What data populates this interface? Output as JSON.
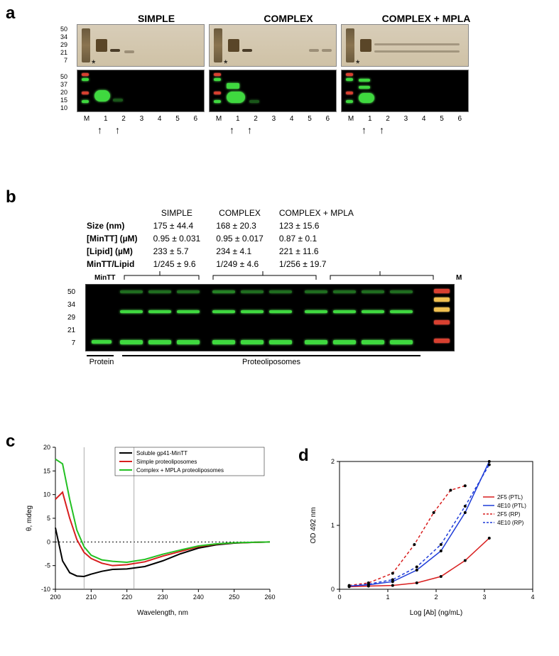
{
  "panelA": {
    "label": "a",
    "titles": [
      "SIMPLE",
      "COMPLEX",
      "COMPLEX + MPLA"
    ],
    "mw_upper": [
      "50",
      "34",
      "29",
      "21",
      "7"
    ],
    "mw_lower": [
      "50",
      "37",
      "20",
      "15",
      "10"
    ],
    "lane_ids": [
      "M",
      "1",
      "2",
      "3",
      "4",
      "5",
      "6"
    ],
    "arrow_lanes": [
      1,
      2
    ]
  },
  "panelB": {
    "label": "b",
    "row_labels": [
      "Size (nm)",
      "[MinTT] (µM)",
      "[Lipid] (µM)",
      "MinTT/Lipid"
    ],
    "columns": [
      "SIMPLE",
      "COMPLEX",
      "COMPLEX + MPLA"
    ],
    "values": [
      [
        "175 ± 44.4",
        "168 ± 20.3",
        "123 ± 15.6"
      ],
      [
        "0.95 ± 0.031",
        "0.95 ± 0.017",
        "0.87 ± 0.1"
      ],
      [
        "233 ± 5.7",
        "234 ± 4.1",
        "221 ± 11.6"
      ],
      [
        "1/245 ± 9.6",
        "1/249 ± 4.6",
        "1/256 ± 19.7"
      ]
    ],
    "mw": [
      "50",
      "34",
      "29",
      "21",
      "7"
    ],
    "top_left_label": "MinTT",
    "top_right_label": "M",
    "bottom_protein": "Protein",
    "bottom_proteo": "Proteoliposomes"
  },
  "panelC": {
    "label": "c",
    "xlabel": "Wavelength, nm",
    "ylabel": "θ, mdeg",
    "xlim": [
      200,
      260
    ],
    "ylim": [
      -10,
      20
    ],
    "xticks": [
      200,
      210,
      220,
      230,
      240,
      250,
      260
    ],
    "yticks": [
      -10,
      -5,
      0,
      5,
      10,
      15,
      20
    ],
    "vlines": [
      208,
      222
    ],
    "series": [
      {
        "name": "Soluble gp41-MinTT",
        "color": "#000000",
        "points": [
          [
            200,
            3
          ],
          [
            202,
            -4
          ],
          [
            204,
            -6.5
          ],
          [
            206,
            -7.2
          ],
          [
            208,
            -7.3
          ],
          [
            210,
            -6.8
          ],
          [
            213,
            -6.2
          ],
          [
            216,
            -5.8
          ],
          [
            220,
            -5.7
          ],
          [
            225,
            -5.2
          ],
          [
            230,
            -4
          ],
          [
            235,
            -2.5
          ],
          [
            240,
            -1.3
          ],
          [
            245,
            -0.6
          ],
          [
            250,
            -0.25
          ],
          [
            255,
            -0.1
          ],
          [
            260,
            0
          ]
        ]
      },
      {
        "name": "Simple proteoliposomes",
        "color": "#d81e1e",
        "points": [
          [
            200,
            9
          ],
          [
            202,
            10.5
          ],
          [
            204,
            5
          ],
          [
            206,
            0.5
          ],
          [
            208,
            -2.2
          ],
          [
            210,
            -3.5
          ],
          [
            213,
            -4.5
          ],
          [
            216,
            -5
          ],
          [
            220,
            -4.8
          ],
          [
            225,
            -4.2
          ],
          [
            230,
            -3
          ],
          [
            235,
            -2
          ],
          [
            240,
            -1
          ],
          [
            245,
            -0.45
          ],
          [
            250,
            -0.2
          ],
          [
            255,
            -0.1
          ],
          [
            260,
            0
          ]
        ]
      },
      {
        "name": "Complex + MPLA proteoliposomes",
        "color": "#22c022",
        "points": [
          [
            200,
            17.5
          ],
          [
            202,
            16.5
          ],
          [
            204,
            9
          ],
          [
            206,
            2.5
          ],
          [
            208,
            -1
          ],
          [
            210,
            -2.8
          ],
          [
            213,
            -3.8
          ],
          [
            216,
            -4.1
          ],
          [
            220,
            -4.3
          ],
          [
            225,
            -3.7
          ],
          [
            230,
            -2.6
          ],
          [
            235,
            -1.7
          ],
          [
            240,
            -0.85
          ],
          [
            245,
            -0.4
          ],
          [
            250,
            -0.18
          ],
          [
            255,
            -0.08
          ],
          [
            260,
            0
          ]
        ]
      }
    ]
  },
  "panelD": {
    "label": "d",
    "xlabel": "Log [Ab] (ng/mL)",
    "ylabel": "OD 492 nm",
    "xlim": [
      0,
      4
    ],
    "ylim": [
      0,
      2
    ],
    "xticks": [
      0,
      1,
      2,
      3,
      4
    ],
    "yticks": [
      0,
      1,
      2
    ],
    "series": [
      {
        "name": "2F5 (PTL)",
        "color": "#d81e1e",
        "dash": false,
        "points": [
          [
            0.2,
            0.04
          ],
          [
            0.6,
            0.05
          ],
          [
            1.1,
            0.06
          ],
          [
            1.6,
            0.1
          ],
          [
            2.1,
            0.2
          ],
          [
            2.6,
            0.45
          ],
          [
            3.1,
            0.8
          ]
        ]
      },
      {
        "name": "4E10 (PTL)",
        "color": "#1e3cd8",
        "dash": false,
        "points": [
          [
            0.2,
            0.05
          ],
          [
            0.6,
            0.07
          ],
          [
            1.1,
            0.12
          ],
          [
            1.6,
            0.3
          ],
          [
            2.1,
            0.6
          ],
          [
            2.6,
            1.2
          ],
          [
            3.1,
            2.0
          ]
        ]
      },
      {
        "name": "2F5 (RP)",
        "color": "#d81e1e",
        "dash": true,
        "points": [
          [
            0.2,
            0.06
          ],
          [
            0.6,
            0.1
          ],
          [
            1.1,
            0.25
          ],
          [
            1.55,
            0.7
          ],
          [
            1.95,
            1.2
          ],
          [
            2.3,
            1.55
          ],
          [
            2.6,
            1.62
          ]
        ]
      },
      {
        "name": "4E10 (RP)",
        "color": "#1e3cd8",
        "dash": true,
        "points": [
          [
            0.2,
            0.05
          ],
          [
            0.6,
            0.08
          ],
          [
            1.1,
            0.15
          ],
          [
            1.6,
            0.35
          ],
          [
            2.1,
            0.7
          ],
          [
            2.6,
            1.3
          ],
          [
            3.1,
            1.95
          ]
        ]
      }
    ]
  }
}
